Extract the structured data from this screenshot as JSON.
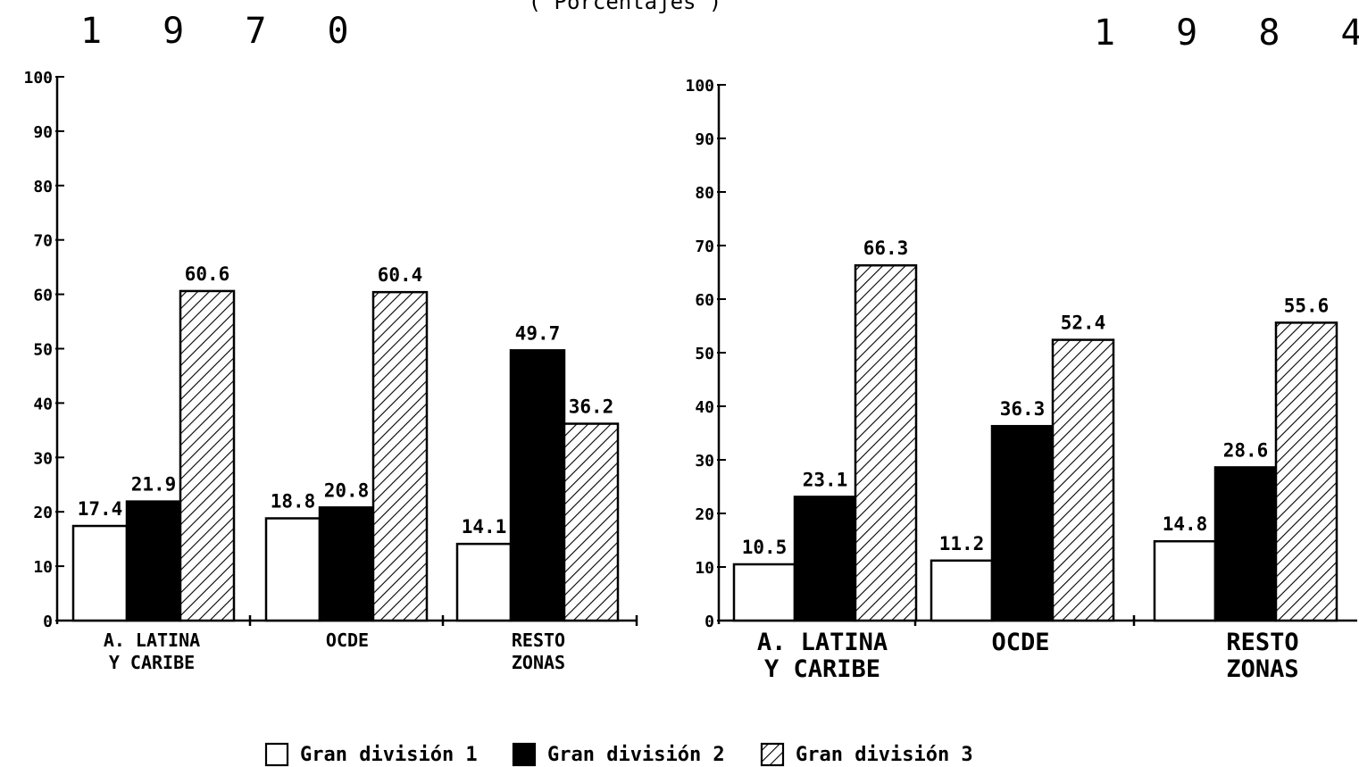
{
  "subtitle": "( Porcentajes )",
  "chart_data": [
    {
      "type": "bar",
      "title": "1 9 7 0",
      "categories": [
        [
          "A. LATINA",
          "Y CARIBE"
        ],
        [
          "OCDE"
        ],
        [
          "RESTO",
          "ZONAS"
        ]
      ],
      "series": [
        {
          "name": "Gran división 1",
          "values": [
            17.4,
            18.8,
            14.1
          ]
        },
        {
          "name": "Gran división 2",
          "values": [
            21.9,
            20.8,
            49.7
          ]
        },
        {
          "name": "Gran división 3",
          "values": [
            60.6,
            60.4,
            36.2
          ]
        }
      ],
      "value_labels": [
        [
          "17.4",
          "18.8",
          "14.1"
        ],
        [
          "21.9",
          "20.8",
          "49.7"
        ],
        [
          "60.6",
          "60.4",
          "36.2"
        ]
      ],
      "ylim": [
        0,
        100
      ],
      "yticks": [
        0,
        10,
        20,
        30,
        40,
        50,
        60,
        70,
        80,
        90,
        100
      ],
      "ytick_labels": [
        "0",
        "10",
        "20",
        "30",
        "40",
        "50",
        "60",
        "70",
        "80",
        "90",
        "100"
      ]
    },
    {
      "type": "bar",
      "title": "1 9 8 4",
      "categories": [
        [
          "A. LATINA",
          "Y CARIBE"
        ],
        [
          "OCDE"
        ],
        [
          "RESTO",
          "ZONAS"
        ]
      ],
      "series": [
        {
          "name": "Gran división 1",
          "values": [
            10.5,
            11.2,
            14.8
          ]
        },
        {
          "name": "Gran división 2",
          "values": [
            23.1,
            36.3,
            28.6
          ]
        },
        {
          "name": "Gran división 3",
          "values": [
            66.3,
            52.4,
            55.6
          ]
        }
      ],
      "value_labels": [
        [
          "10.5",
          "11.2",
          "14.8"
        ],
        [
          "23.1",
          "36.3",
          "28.6"
        ],
        [
          "66.3",
          "52.4",
          "55.6"
        ]
      ],
      "ylim": [
        0,
        100
      ],
      "yticks": [
        0,
        10,
        20,
        30,
        40,
        50,
        60,
        70,
        80,
        90,
        100
      ],
      "ytick_labels": [
        "0",
        "10",
        "20",
        "30",
        "40",
        "50",
        "60",
        "70",
        "80",
        "90",
        "100"
      ]
    }
  ],
  "legend": {
    "placement": "bottom",
    "items": [
      {
        "label": "Gran división 1",
        "fill": "white"
      },
      {
        "label": "Gran división 2",
        "fill": "black"
      },
      {
        "label": "Gran división 3",
        "fill": "hatched"
      }
    ]
  },
  "colors": {
    "ink": "#000000",
    "paper": "#ffffff"
  }
}
